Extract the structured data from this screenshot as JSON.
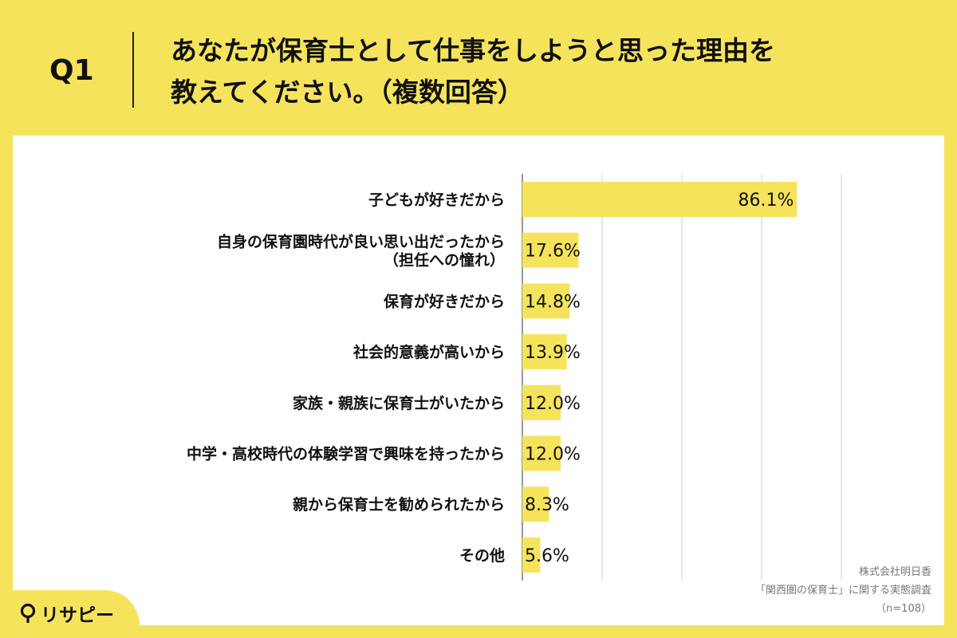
{
  "header": {
    "question_label": "Q1",
    "title_line1": "あなたが保育士として仕事をしようと思った理由を",
    "title_line2": "教えてください。（複数回答）"
  },
  "chart_data": {
    "type": "bar",
    "orientation": "horizontal",
    "categories": [
      [
        "子どもが好きだから"
      ],
      [
        "自身の保育園時代が良い思い出だったから",
        "（担任への憧れ）"
      ],
      [
        "保育が好きだから"
      ],
      [
        "社会的意義が高いから"
      ],
      [
        "家族・親族に保育士がいたから"
      ],
      [
        "中学・高校時代の体験学習で興味を持ったから"
      ],
      [
        "親から保育士を勧められたから"
      ],
      [
        "その他"
      ]
    ],
    "values": [
      86.1,
      17.6,
      14.8,
      13.9,
      12.0,
      12.0,
      8.3,
      5.6
    ],
    "value_labels": [
      "86.1%",
      "17.6%",
      "14.8%",
      "13.9%",
      "12.0%",
      "12.0%",
      "8.3%",
      "5.6%"
    ],
    "xlim": [
      0,
      100
    ],
    "gridlines": [
      0,
      25,
      50,
      75,
      100
    ],
    "grid": true,
    "bar_color": "#f6e35c"
  },
  "source": {
    "line1": "株式会社明日香",
    "line2": "「関西圏の保育士」に関する実態調査",
    "line3": "（n=108）"
  },
  "logo": {
    "text": "リサピー",
    "mark": "pin-icon"
  },
  "colors": {
    "background": "#f6e35c",
    "panel": "#ffffff",
    "text": "#111111"
  }
}
